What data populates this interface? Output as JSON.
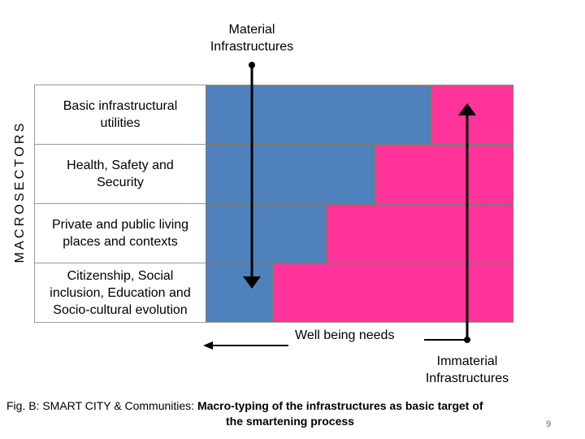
{
  "top_label": {
    "line1": "Material",
    "line2": "Infrastructures"
  },
  "side_label": "MACROSECTORS",
  "rows": [
    {
      "label_line1": "Basic infrastructural",
      "label_line2": "utilities",
      "label_line3": "",
      "material_share": 0.73
    },
    {
      "label_line1": "Health, Safety and",
      "label_line2": "Security",
      "label_line3": "",
      "material_share": 0.55
    },
    {
      "label_line1": "Private and public living",
      "label_line2": "places and contexts",
      "label_line3": "",
      "material_share": 0.39
    },
    {
      "label_line1": "Citizenship, Social",
      "label_line2": "inclusion, Education and",
      "label_line3": "Socio-cultural evolution",
      "material_share": 0.22
    }
  ],
  "bottom_label": "Well being needs",
  "immaterial_label": {
    "line1": "Immaterial",
    "line2": "Infrastructures"
  },
  "caption": {
    "lead": "Fig. B: SMART CITY & Communities:",
    "rest": " Macro-typing of the infrastructures as basic target of",
    "line2": "the smartening process"
  },
  "page_number": "9",
  "colors": {
    "material": "#4f81bd",
    "immaterial": "#ff3399",
    "border": "#9a9a9a",
    "arrow": "#000000"
  }
}
